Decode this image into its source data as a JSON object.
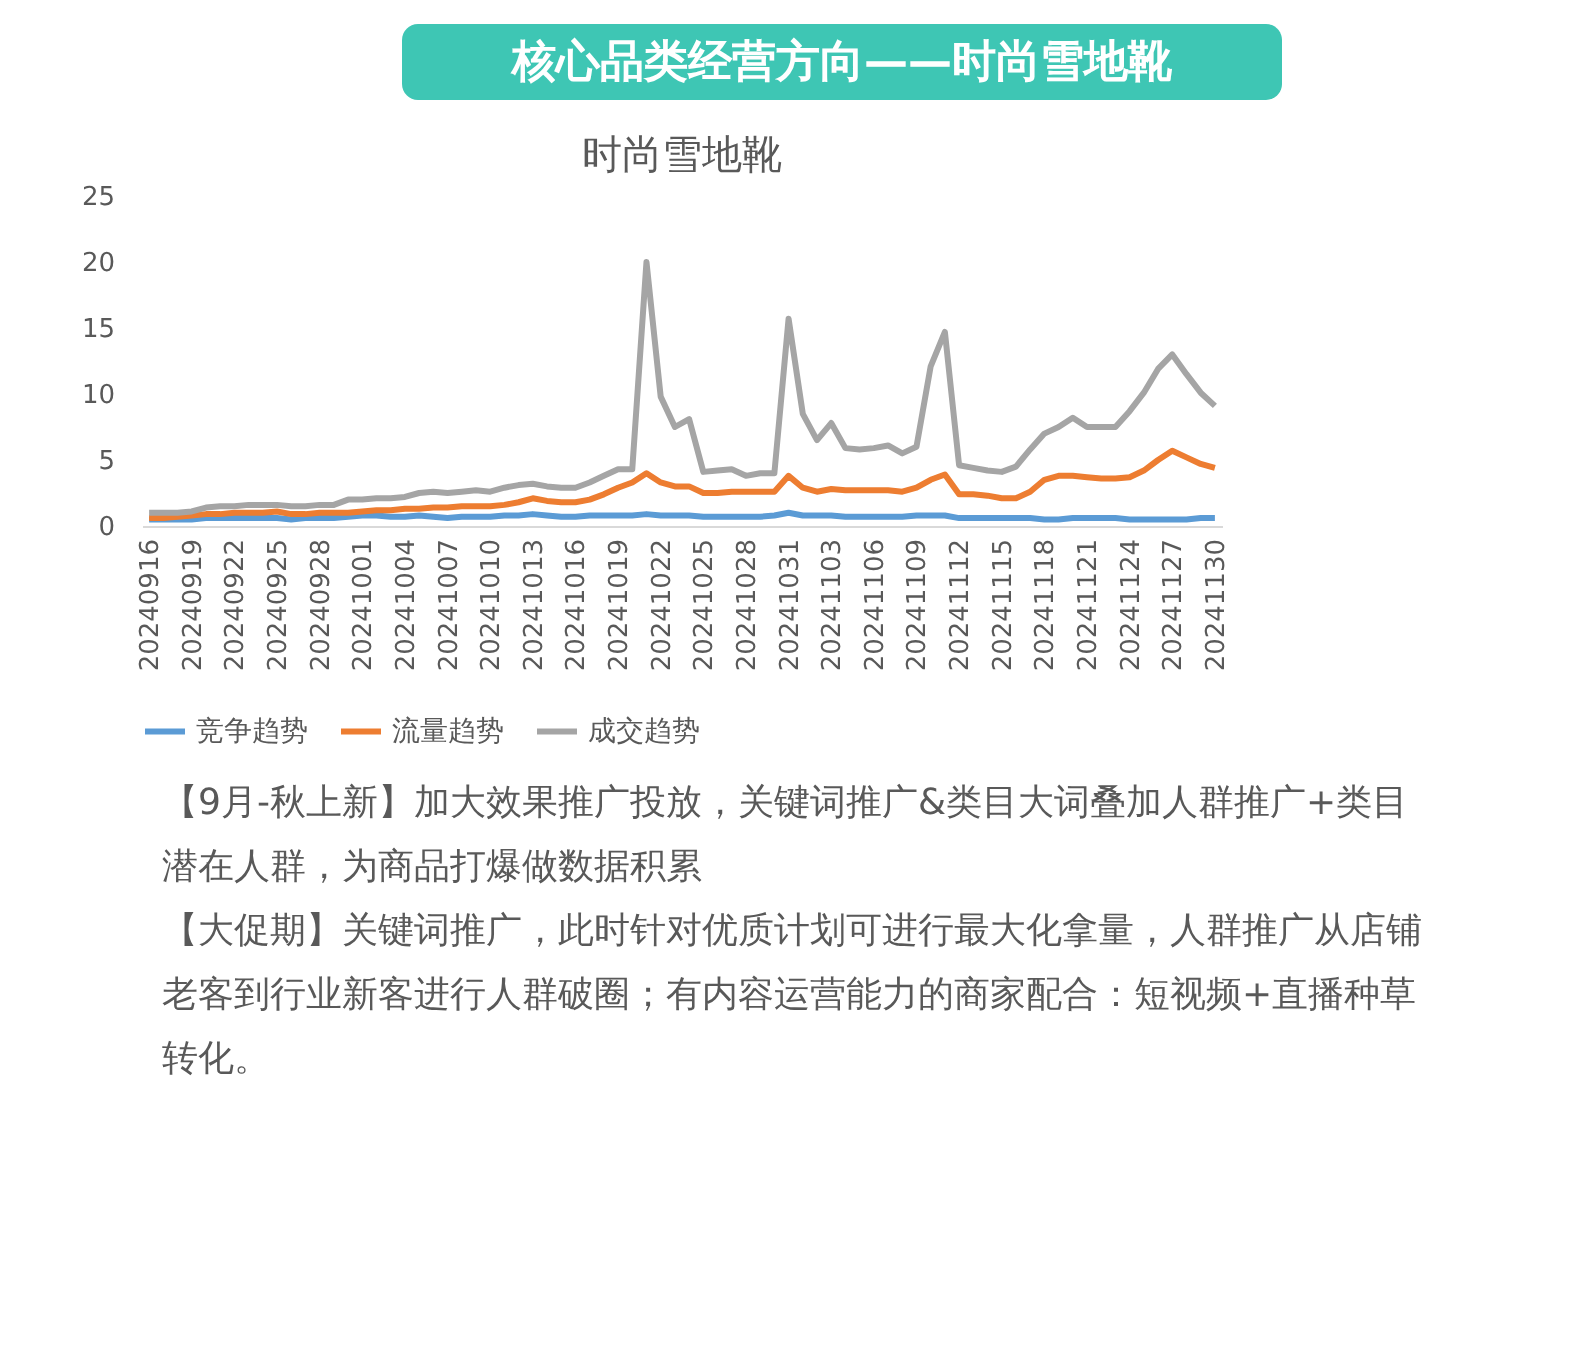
{
  "chart_data": {
    "type": "line",
    "title": "核心品类经营方向——时尚雪地靴",
    "subtitle": "时尚雪地靴",
    "categories": [
      "20240916",
      null,
      null,
      "20240919",
      null,
      null,
      "20240922",
      null,
      null,
      "20240925",
      null,
      null,
      "20240928",
      null,
      null,
      "20241001",
      null,
      null,
      "20241004",
      null,
      null,
      "20241007",
      null,
      null,
      "20241010",
      null,
      null,
      "20241013",
      null,
      null,
      "20241016",
      null,
      null,
      "20241019",
      null,
      null,
      "20241022",
      null,
      null,
      "20241025",
      null,
      null,
      "20241028",
      null,
      null,
      "20241031",
      null,
      null,
      "20241103",
      null,
      null,
      "20241106",
      null,
      null,
      "20241109",
      null,
      null,
      "20241112",
      null,
      null,
      "20241115",
      null,
      null,
      "20241118",
      null,
      null,
      "20241121",
      null,
      null,
      "20241124",
      null,
      null,
      "20241127",
      null,
      null,
      "20241130"
    ],
    "series": [
      {
        "name": "竞争趋势",
        "color": "#5b9bd5",
        "values": [
          0.5,
          0.5,
          0.5,
          0.5,
          0.6,
          0.6,
          0.6,
          0.6,
          0.6,
          0.6,
          0.5,
          0.6,
          0.6,
          0.6,
          0.7,
          0.8,
          0.8,
          0.7,
          0.7,
          0.8,
          0.7,
          0.6,
          0.7,
          0.7,
          0.7,
          0.8,
          0.8,
          0.9,
          0.8,
          0.7,
          0.7,
          0.8,
          0.8,
          0.8,
          0.8,
          0.9,
          0.8,
          0.8,
          0.8,
          0.7,
          0.7,
          0.7,
          0.7,
          0.7,
          0.8,
          1.0,
          0.8,
          0.8,
          0.8,
          0.7,
          0.7,
          0.7,
          0.7,
          0.7,
          0.8,
          0.8,
          0.8,
          0.6,
          0.6,
          0.6,
          0.6,
          0.6,
          0.6,
          0.5,
          0.5,
          0.6,
          0.6,
          0.6,
          0.6,
          0.5,
          0.5,
          0.5,
          0.5,
          0.5,
          0.6,
          0.6
        ]
      },
      {
        "name": "流量趋势",
        "color": "#ed7d31",
        "values": [
          0.6,
          0.6,
          0.7,
          0.8,
          0.9,
          0.9,
          1.0,
          1.0,
          1.0,
          1.1,
          0.9,
          0.9,
          1.0,
          1.0,
          1.0,
          1.1,
          1.2,
          1.2,
          1.3,
          1.3,
          1.4,
          1.4,
          1.5,
          1.5,
          1.5,
          1.6,
          1.8,
          2.1,
          1.9,
          1.8,
          1.8,
          2.0,
          2.4,
          2.9,
          3.3,
          4.0,
          3.3,
          3.0,
          3.0,
          2.5,
          2.5,
          2.6,
          2.6,
          2.6,
          2.6,
          3.8,
          2.9,
          2.6,
          2.8,
          2.7,
          2.7,
          2.7,
          2.7,
          2.6,
          2.9,
          3.5,
          3.9,
          2.4,
          2.4,
          2.3,
          2.1,
          2.1,
          2.6,
          3.5,
          3.8,
          3.8,
          3.7,
          3.6,
          3.6,
          3.7,
          4.2,
          5.0,
          5.7,
          5.2,
          4.7,
          4.4
        ]
      },
      {
        "name": "成交趋势",
        "color": "#a5a5a5",
        "values": [
          1.0,
          1.0,
          1.0,
          1.1,
          1.4,
          1.5,
          1.5,
          1.6,
          1.6,
          1.6,
          1.5,
          1.5,
          1.6,
          1.6,
          2.0,
          2.0,
          2.1,
          2.1,
          2.2,
          2.5,
          2.6,
          2.5,
          2.6,
          2.7,
          2.6,
          2.9,
          3.1,
          3.2,
          3.0,
          2.9,
          2.9,
          3.3,
          3.8,
          4.3,
          4.3,
          20.0,
          9.8,
          7.5,
          8.1,
          4.1,
          4.2,
          4.3,
          3.8,
          4.0,
          4.0,
          15.7,
          8.5,
          6.5,
          7.8,
          5.9,
          5.8,
          5.9,
          6.1,
          5.5,
          6.0,
          12.1,
          14.7,
          4.6,
          4.4,
          4.2,
          4.1,
          4.5,
          5.8,
          7.0,
          7.5,
          8.2,
          7.5,
          7.5,
          7.5,
          8.7,
          10.1,
          11.9,
          13.0,
          11.5,
          10.1,
          9.1
        ]
      }
    ],
    "ylim": [
      0,
      25
    ],
    "yticks": [
      0,
      5,
      10,
      15,
      20,
      25
    ],
    "grid": false,
    "legend": "bottom",
    "annotations": [
      "【9月-秋上新】加大效果推广投放，关键词推广&类目大词叠加人群推广+类目潜在人群，为商品打爆做数据积累",
      "【大促期】关键词推广，此时针对优质计划可进行最大化拿量，人群推广从店铺老客到行业新客进行人群破圈；有内容运营能力的商家配合：短视频+直播种草转化。"
    ]
  }
}
